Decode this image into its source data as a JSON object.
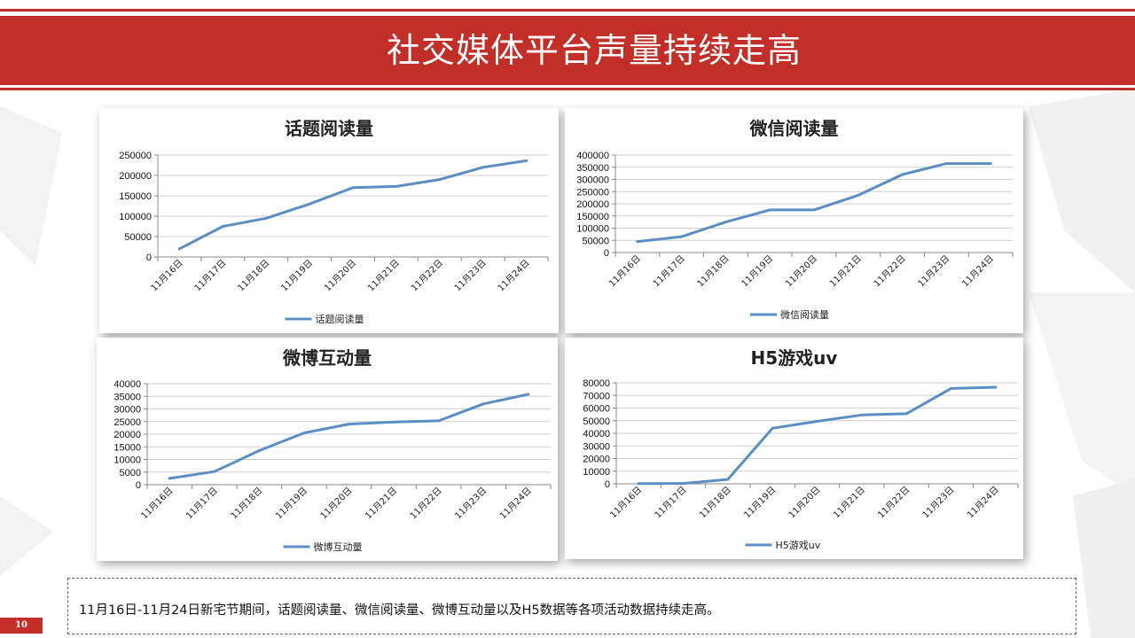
{
  "header": {
    "title": "社交媒体平台声量持续走高",
    "band_color": "#c22f28"
  },
  "chart_data": [
    {
      "type": "line",
      "title": "话题阅读量",
      "categories": [
        "11月16日",
        "11月17日",
        "11月18日",
        "11月19日",
        "11月20日",
        "11月21日",
        "11月22日",
        "11月23日",
        "11月24日"
      ],
      "series": [
        {
          "name": "话题阅读量",
          "values": [
            20000,
            75000,
            95000,
            130000,
            170000,
            173000,
            190000,
            220000,
            236000
          ]
        }
      ],
      "yticks": [
        0,
        50000,
        100000,
        150000,
        200000,
        250000
      ],
      "ylim": [
        0,
        250000
      ],
      "grid": true,
      "legend": "bottom",
      "color": "#5b8ec4"
    },
    {
      "type": "line",
      "title": "微信阅读量",
      "categories": [
        "11月16日",
        "11月17日",
        "11月18日",
        "11月19日",
        "11月20日",
        "11月21日",
        "11月22日",
        "11月23日",
        "11月24日"
      ],
      "series": [
        {
          "name": "微信阅读量",
          "values": [
            45000,
            65000,
            125000,
            175000,
            175000,
            235000,
            320000,
            365000,
            365000
          ]
        }
      ],
      "yticks": [
        0,
        50000,
        100000,
        150000,
        200000,
        250000,
        300000,
        350000,
        400000
      ],
      "ylim": [
        0,
        400000
      ],
      "grid": true,
      "legend": "bottom",
      "color": "#5b8ec4"
    },
    {
      "type": "line",
      "title": "微博互动量",
      "categories": [
        "11月16日",
        "11月17日",
        "11月18日",
        "11月19日",
        "11月20日",
        "11月21日",
        "11月22日",
        "11月23日",
        "11月24日"
      ],
      "series": [
        {
          "name": "微博互动量",
          "values": [
            2500,
            5200,
            13500,
            20500,
            24000,
            24800,
            25300,
            32000,
            35800
          ]
        }
      ],
      "yticks": [
        0,
        5000,
        10000,
        15000,
        20000,
        25000,
        30000,
        35000,
        40000
      ],
      "ylim": [
        0,
        40000
      ],
      "grid": true,
      "legend": "bottom",
      "color": "#5b8ec4"
    },
    {
      "type": "line",
      "title": "H5游戏uv",
      "categories": [
        "11月16日",
        "11月17日",
        "11月18日",
        "11月19日",
        "11月20日",
        "11月21日",
        "11月22日",
        "11月23日",
        "11月24日"
      ],
      "series": [
        {
          "name": "H5游戏uv",
          "values": [
            200,
            300,
            3500,
            44000,
            49500,
            54500,
            55500,
            75500,
            76500
          ]
        }
      ],
      "yticks": [
        0,
        10000,
        20000,
        30000,
        40000,
        50000,
        60000,
        70000,
        80000
      ],
      "ylim": [
        0,
        80000
      ],
      "grid": true,
      "legend": "bottom",
      "color": "#5b8ec4"
    }
  ],
  "summary": {
    "text": "11月16日-11月24日新宅节期间，话题阅读量、微信阅读量、微博互动量以及H5数据等各项活动数据持续走高。"
  },
  "footer": {
    "page_number": "10"
  }
}
